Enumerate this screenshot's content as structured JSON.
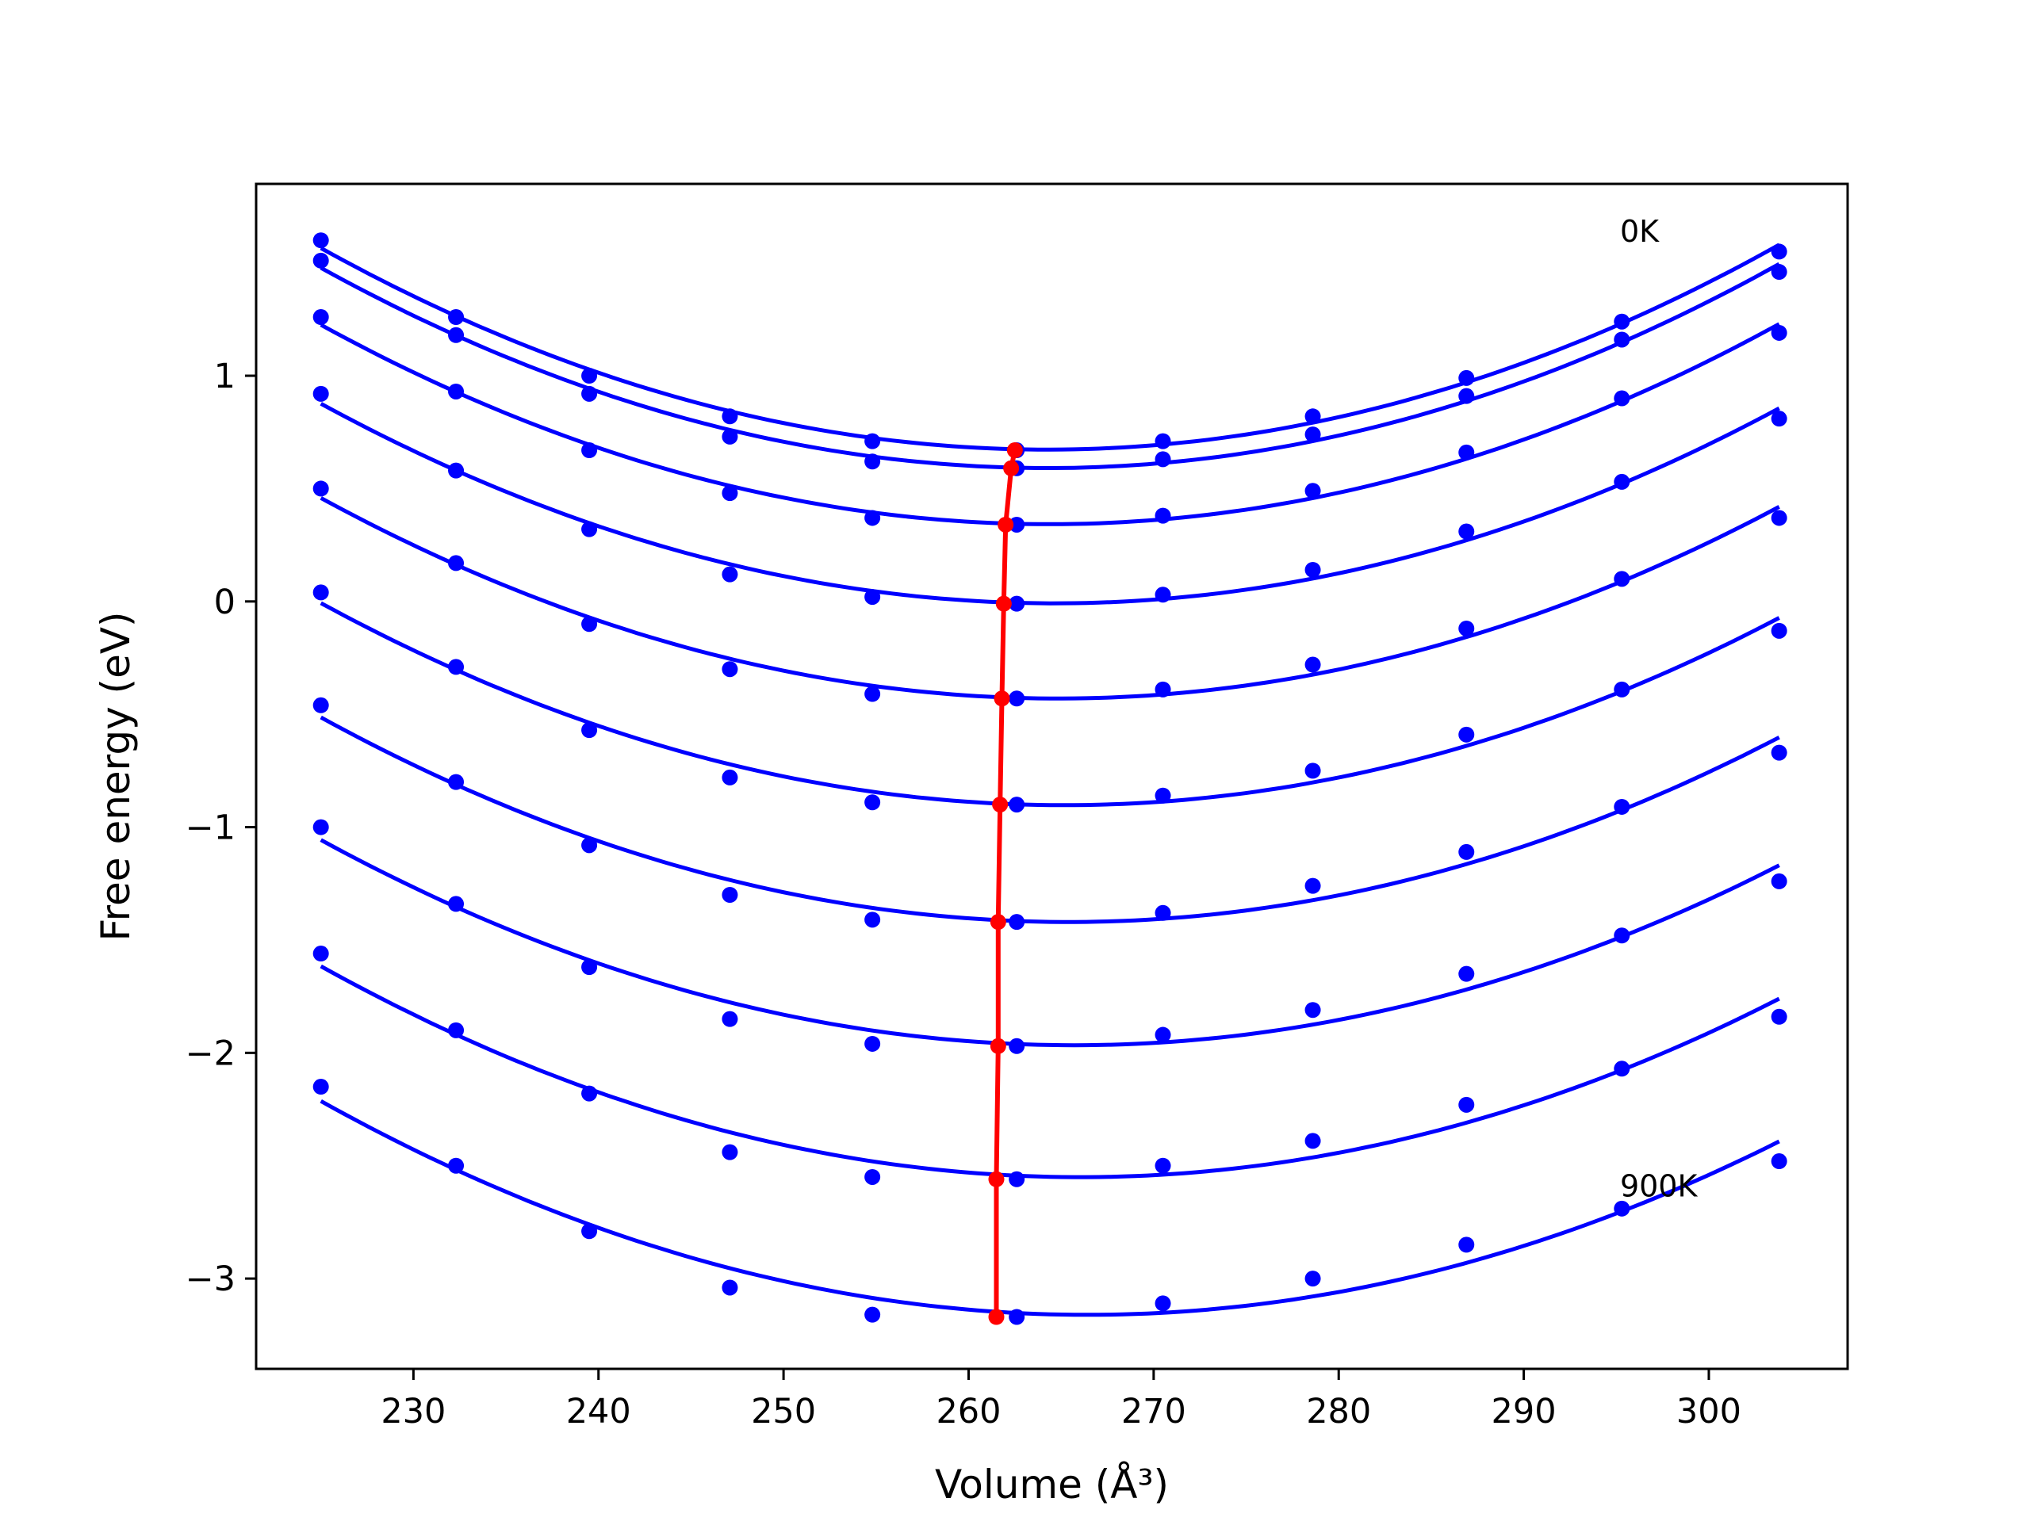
{
  "chart_data": {
    "type": "line",
    "xlabel": "Volume (Å³)",
    "ylabel": "Free energy (eV)",
    "xlim": [
      221.5,
      307.5
    ],
    "ylim": [
      -3.4,
      1.85
    ],
    "x_ticks": [
      230,
      240,
      250,
      260,
      270,
      280,
      290,
      300
    ],
    "y_ticks": [
      -3,
      -2,
      -1,
      0,
      1
    ],
    "x_tick_labels": [
      "230",
      "240",
      "250",
      "260",
      "270",
      "280",
      "290",
      "300"
    ],
    "y_tick_labels": [
      "−3",
      "−2",
      "−1",
      "0",
      "1"
    ],
    "grid": false,
    "legend": "none",
    "colors": {
      "data": "#0000ff",
      "minimum_line": "#ff0000",
      "axes": "#000000"
    },
    "annotations": [
      {
        "text": "0K",
        "x": 295.2,
        "y": 1.64
      },
      {
        "text": "900K",
        "x": 295.2,
        "y": -2.59
      }
    ],
    "x": [
      225.0,
      232.3,
      239.5,
      247.1,
      254.8,
      262.6,
      270.5,
      278.6,
      286.9,
      295.3,
      303.8
    ],
    "series": [
      {
        "values": [
          1.6,
          1.26,
          1.0,
          0.82,
          0.71,
          0.67,
          0.71,
          0.82,
          0.99,
          1.24,
          1.55
        ]
      },
      {
        "values": [
          1.51,
          1.18,
          0.92,
          0.73,
          0.62,
          0.59,
          0.63,
          0.74,
          0.91,
          1.16,
          1.46
        ]
      },
      {
        "values": [
          1.26,
          0.93,
          0.67,
          0.48,
          0.37,
          0.34,
          0.38,
          0.49,
          0.66,
          0.9,
          1.19
        ]
      },
      {
        "values": [
          0.92,
          0.58,
          0.32,
          0.12,
          0.02,
          -0.01,
          0.03,
          0.14,
          0.31,
          0.53,
          0.81
        ]
      },
      {
        "values": [
          0.5,
          0.17,
          -0.1,
          -0.3,
          -0.41,
          -0.43,
          -0.39,
          -0.28,
          -0.12,
          0.1,
          0.37
        ]
      },
      {
        "values": [
          0.04,
          -0.29,
          -0.57,
          -0.78,
          -0.89,
          -0.9,
          -0.86,
          -0.75,
          -0.59,
          -0.39,
          -0.13
        ]
      },
      {
        "values": [
          -0.46,
          -0.8,
          -1.08,
          -1.3,
          -1.41,
          -1.42,
          -1.38,
          -1.26,
          -1.11,
          -0.91,
          -0.67
        ]
      },
      {
        "values": [
          -1.0,
          -1.34,
          -1.62,
          -1.85,
          -1.96,
          -1.97,
          -1.92,
          -1.81,
          -1.65,
          -1.48,
          -1.24
        ]
      },
      {
        "values": [
          -1.56,
          -1.9,
          -2.18,
          -2.44,
          -2.55,
          -2.56,
          -2.5,
          -2.39,
          -2.23,
          -2.07,
          -1.84
        ]
      },
      {
        "values": [
          -2.15,
          -2.5,
          -2.79,
          -3.04,
          -3.16,
          -3.17,
          -3.11,
          -3.0,
          -2.85,
          -2.69,
          -2.48
        ]
      }
    ],
    "minimum_line": {
      "x": [
        262.5,
        262.3,
        262.0,
        261.9,
        261.8,
        261.7,
        261.6,
        261.6,
        261.5,
        261.5
      ],
      "y": [
        0.67,
        0.59,
        0.34,
        -0.01,
        -0.43,
        -0.9,
        -1.42,
        -1.97,
        -2.56,
        -3.17
      ]
    }
  }
}
